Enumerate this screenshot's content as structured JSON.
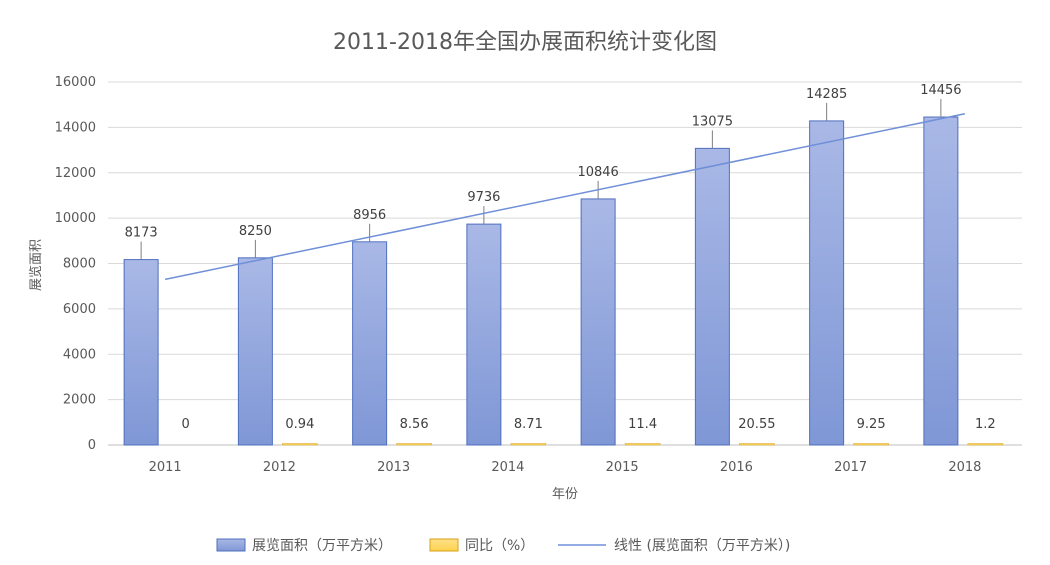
{
  "chart_data": {
    "type": "bar",
    "title": "2011-2018年全国办展面积统计变化图",
    "xlabel": "年份",
    "ylabel": "展览面积",
    "categories": [
      "2011",
      "2012",
      "2013",
      "2014",
      "2015",
      "2016",
      "2017",
      "2018"
    ],
    "ylim": [
      0,
      16000
    ],
    "yticks": [
      0,
      2000,
      4000,
      6000,
      8000,
      10000,
      12000,
      14000,
      16000
    ],
    "grid": true,
    "legend_position": "bottom",
    "series": [
      {
        "name": "展览面积（万平方米）",
        "type": "bar",
        "color": "#8ea3d9",
        "values": [
          8173,
          8250,
          8956,
          9736,
          10846,
          13075,
          14285,
          14456
        ],
        "labels": [
          "8173",
          "8250",
          "8956",
          "9736",
          "10846",
          "13075",
          "14285",
          "14456"
        ]
      },
      {
        "name": "同比（%）",
        "type": "bar",
        "color": "#ffd966",
        "values": [
          0,
          0.94,
          8.56,
          8.71,
          11.4,
          20.55,
          9.25,
          1.2
        ],
        "labels": [
          "0",
          "0.94",
          "8.56",
          "8.71",
          "11.4",
          "20.55",
          "9.25",
          "1.2"
        ]
      },
      {
        "name": "线性 (展览面积（万平方米）)",
        "type": "trendline",
        "color": "#6f8fd8",
        "start_value": 7300,
        "end_value": 14600
      }
    ]
  }
}
